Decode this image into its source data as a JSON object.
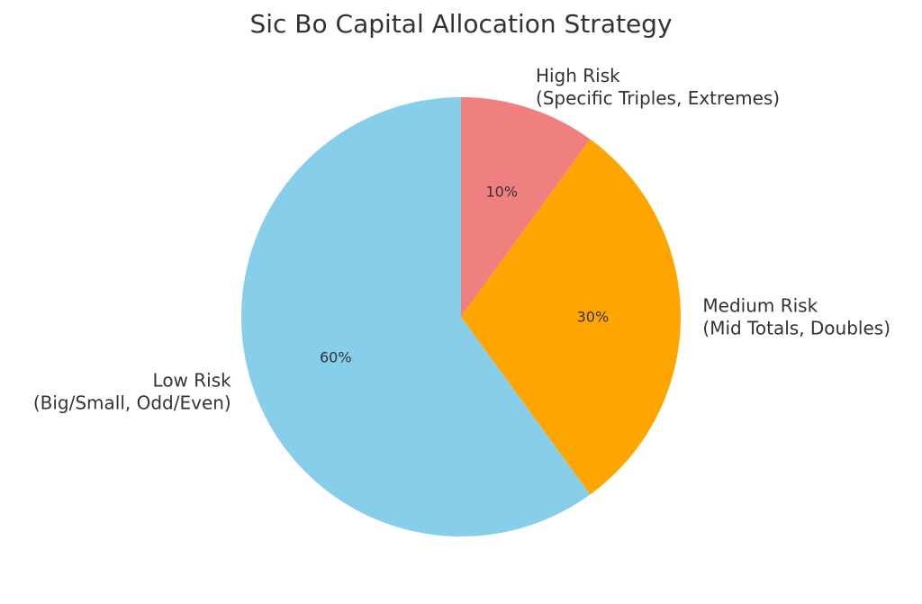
{
  "chart_data": {
    "type": "pie",
    "title": "Sic Bo Capital Allocation Strategy",
    "start_angle_deg": 90,
    "direction": "clockwise",
    "slices": [
      {
        "label_lines": [
          "High Risk",
          "(Specific Triples, Extremes)"
        ],
        "value": 10,
        "pct_label": "10%",
        "color": "#f08080"
      },
      {
        "label_lines": [
          "Medium Risk",
          "(Mid Totals, Doubles)"
        ],
        "value": 30,
        "pct_label": "30%",
        "color": "#ffa500"
      },
      {
        "label_lines": [
          "Low Risk",
          "(Big/Small, Odd/Even)"
        ],
        "value": 60,
        "pct_label": "60%",
        "color": "#87ceeb"
      }
    ]
  }
}
